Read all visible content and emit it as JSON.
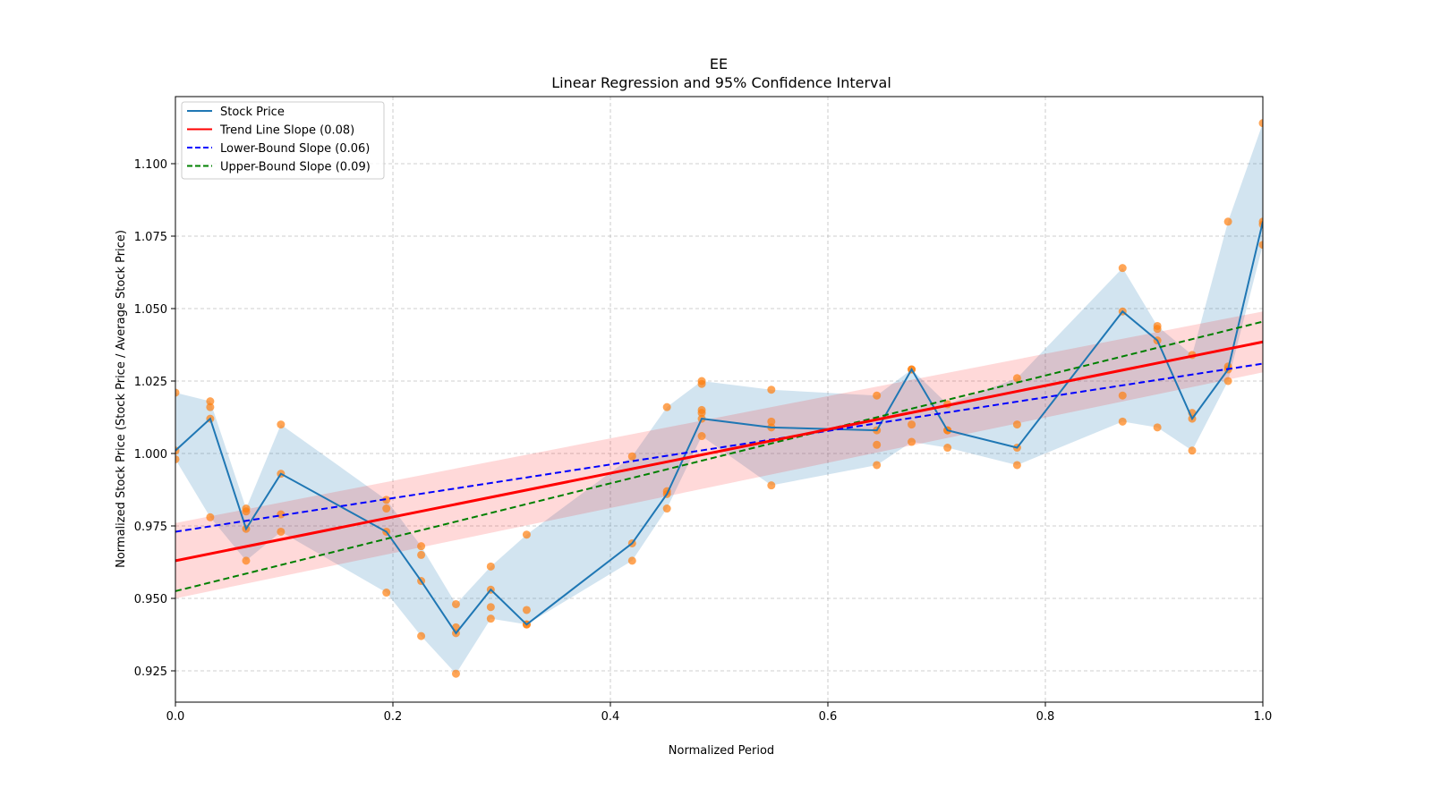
{
  "chart_data": {
    "type": "line",
    "title": "EE",
    "subtitle": "Linear Regression and 95% Confidence Interval",
    "xlabel": "Normalized Period",
    "ylabel": "Normalized Stock Price (Stock Price / Average Stock Price)",
    "xlim": [
      0.0,
      1.0
    ],
    "ylim": [
      0.915,
      1.1225
    ],
    "xticks": [
      0.0,
      0.2,
      0.4,
      0.6,
      0.8,
      1.0
    ],
    "xtick_labels": [
      "0.0",
      "0.2",
      "0.4",
      "0.6",
      "0.8",
      "1.0"
    ],
    "yticks": [
      0.925,
      0.95,
      0.975,
      1.0,
      1.025,
      1.05,
      1.075,
      1.1
    ],
    "ytick_labels": [
      "0.925",
      "0.950",
      "0.975",
      "1.000",
      "1.025",
      "1.050",
      "1.075",
      "1.100"
    ],
    "grid": true,
    "legend_position": "top-left",
    "legend": [
      {
        "label": "Stock Price",
        "color": "#1f77b4",
        "style": "solid"
      },
      {
        "label": "Trend Line Slope (0.08)",
        "color": "#ff0000",
        "style": "solid"
      },
      {
        "label": "Lower-Bound Slope (0.06)",
        "color": "#0000ff",
        "style": "dashed"
      },
      {
        "label": "Upper-Bound Slope (0.09)",
        "color": "#008000",
        "style": "dashed"
      }
    ],
    "series": [
      {
        "name": "Stock Price",
        "color": "#1f77b4",
        "x": [
          0.0,
          0.032,
          0.065,
          0.097,
          0.194,
          0.226,
          0.258,
          0.29,
          0.323,
          0.42,
          0.452,
          0.484,
          0.548,
          0.645,
          0.677,
          0.71,
          0.774,
          0.871,
          0.903,
          0.935,
          0.968,
          1.0
        ],
        "values": [
          1.001,
          1.012,
          0.974,
          0.993,
          0.973,
          0.956,
          0.938,
          0.953,
          0.941,
          0.969,
          0.986,
          1.012,
          1.009,
          1.008,
          1.029,
          1.008,
          1.002,
          1.049,
          1.039,
          1.012,
          1.029,
          1.08
        ]
      }
    ],
    "band": {
      "name": "Stock Price Range",
      "color": "#1f77b4",
      "upper": [
        1.021,
        1.018,
        0.981,
        1.01,
        0.984,
        0.968,
        0.948,
        0.961,
        0.972,
        0.999,
        1.016,
        1.025,
        1.022,
        1.02,
        1.029,
        1.017,
        1.026,
        1.064,
        1.044,
        1.034,
        1.08,
        1.114
      ],
      "lower": [
        0.998,
        0.978,
        0.963,
        0.973,
        0.952,
        0.937,
        0.924,
        0.943,
        0.941,
        0.963,
        0.981,
        1.006,
        0.989,
        0.996,
        1.004,
        1.002,
        0.996,
        1.011,
        1.009,
        1.001,
        1.025,
        1.072
      ]
    },
    "scatter": {
      "name": "Observations",
      "color": "#ff7f0e",
      "points": [
        [
          0.0,
          1.021
        ],
        [
          0.0,
          1.001
        ],
        [
          0.0,
          0.998
        ],
        [
          0.032,
          1.018
        ],
        [
          0.032,
          1.016
        ],
        [
          0.032,
          1.012
        ],
        [
          0.032,
          0.978
        ],
        [
          0.065,
          0.981
        ],
        [
          0.065,
          0.98
        ],
        [
          0.065,
          0.974
        ],
        [
          0.065,
          0.963
        ],
        [
          0.097,
          1.01
        ],
        [
          0.097,
          0.993
        ],
        [
          0.097,
          0.979
        ],
        [
          0.097,
          0.973
        ],
        [
          0.194,
          0.984
        ],
        [
          0.194,
          0.981
        ],
        [
          0.194,
          0.973
        ],
        [
          0.194,
          0.952
        ],
        [
          0.226,
          0.968
        ],
        [
          0.226,
          0.965
        ],
        [
          0.226,
          0.956
        ],
        [
          0.226,
          0.937
        ],
        [
          0.258,
          0.948
        ],
        [
          0.258,
          0.94
        ],
        [
          0.258,
          0.938
        ],
        [
          0.258,
          0.924
        ],
        [
          0.29,
          0.961
        ],
        [
          0.29,
          0.953
        ],
        [
          0.29,
          0.947
        ],
        [
          0.29,
          0.943
        ],
        [
          0.323,
          0.972
        ],
        [
          0.323,
          0.946
        ],
        [
          0.323,
          0.941
        ],
        [
          0.323,
          0.941
        ],
        [
          0.42,
          0.999
        ],
        [
          0.42,
          0.969
        ],
        [
          0.42,
          0.963
        ],
        [
          0.452,
          1.016
        ],
        [
          0.452,
          0.987
        ],
        [
          0.452,
          0.986
        ],
        [
          0.452,
          0.981
        ],
        [
          0.484,
          1.025
        ],
        [
          0.484,
          1.024
        ],
        [
          0.484,
          1.015
        ],
        [
          0.484,
          1.014
        ],
        [
          0.484,
          1.012
        ],
        [
          0.484,
          1.006
        ],
        [
          0.548,
          1.022
        ],
        [
          0.548,
          1.011
        ],
        [
          0.548,
          1.009
        ],
        [
          0.548,
          0.989
        ],
        [
          0.645,
          1.02
        ],
        [
          0.645,
          1.008
        ],
        [
          0.645,
          1.003
        ],
        [
          0.645,
          0.996
        ],
        [
          0.677,
          1.029
        ],
        [
          0.677,
          1.029
        ],
        [
          0.677,
          1.01
        ],
        [
          0.677,
          1.004
        ],
        [
          0.71,
          1.017
        ],
        [
          0.71,
          1.008
        ],
        [
          0.71,
          1.008
        ],
        [
          0.71,
          1.002
        ],
        [
          0.774,
          1.026
        ],
        [
          0.774,
          1.01
        ],
        [
          0.774,
          1.002
        ],
        [
          0.774,
          0.996
        ],
        [
          0.871,
          1.064
        ],
        [
          0.871,
          1.049
        ],
        [
          0.871,
          1.02
        ],
        [
          0.871,
          1.011
        ],
        [
          0.903,
          1.044
        ],
        [
          0.903,
          1.043
        ],
        [
          0.903,
          1.039
        ],
        [
          0.903,
          1.009
        ],
        [
          0.935,
          1.034
        ],
        [
          0.935,
          1.014
        ],
        [
          0.935,
          1.012
        ],
        [
          0.935,
          1.001
        ],
        [
          0.968,
          1.08
        ],
        [
          0.968,
          1.03
        ],
        [
          0.968,
          1.029
        ],
        [
          0.968,
          1.025
        ],
        [
          1.0,
          1.114
        ],
        [
          1.0,
          1.08
        ],
        [
          1.0,
          1.079
        ],
        [
          1.0,
          1.072
        ]
      ]
    },
    "trend_line": {
      "name": "Trend Line Slope (0.08)",
      "slope": 0.0755,
      "intercept": 0.963,
      "color": "#ff0000"
    },
    "trend_ci": {
      "lower_at_0": 0.95,
      "upper_at_0": 0.976,
      "lower_at_1": 1.028,
      "upper_at_1": 1.049,
      "color": "#ff0000"
    },
    "lower_bound_line": {
      "name": "Lower-Bound Slope (0.06)",
      "slope": 0.058,
      "intercept": 0.973,
      "color": "#0000ff"
    },
    "upper_bound_line": {
      "name": "Upper-Bound Slope (0.09)",
      "slope": 0.093,
      "intercept": 0.9525,
      "color": "#008000"
    }
  }
}
